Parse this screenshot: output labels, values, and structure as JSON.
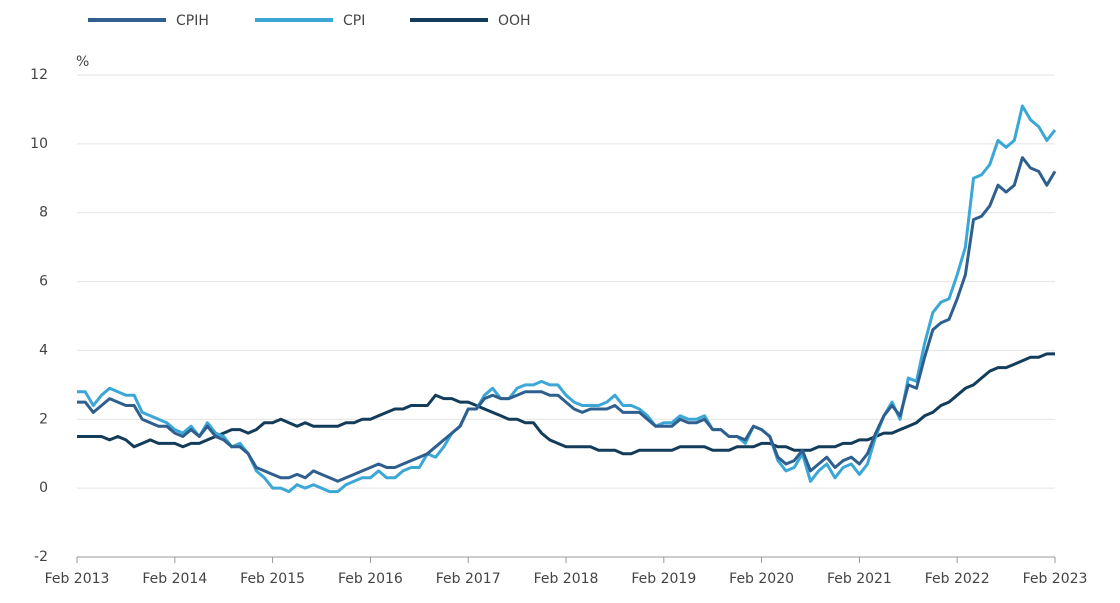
{
  "chart_data": {
    "type": "line",
    "y_unit": "%",
    "categories": [
      "Feb 2013",
      null,
      null,
      null,
      null,
      null,
      null,
      null,
      null,
      null,
      null,
      null,
      "Feb 2014",
      null,
      null,
      null,
      null,
      null,
      null,
      null,
      null,
      null,
      null,
      null,
      "Feb 2015",
      null,
      null,
      null,
      null,
      null,
      null,
      null,
      null,
      null,
      null,
      null,
      "Feb 2016",
      null,
      null,
      null,
      null,
      null,
      null,
      null,
      null,
      null,
      null,
      null,
      "Feb 2017",
      null,
      null,
      null,
      null,
      null,
      null,
      null,
      null,
      null,
      null,
      null,
      "Feb 2018",
      null,
      null,
      null,
      null,
      null,
      null,
      null,
      null,
      null,
      null,
      null,
      "Feb 2019",
      null,
      null,
      null,
      null,
      null,
      null,
      null,
      null,
      null,
      null,
      null,
      "Feb 2020",
      null,
      null,
      null,
      null,
      null,
      null,
      null,
      null,
      null,
      null,
      null,
      "Feb 2021",
      null,
      null,
      null,
      null,
      null,
      null,
      null,
      null,
      null,
      null,
      null,
      "Feb 2022",
      null,
      null,
      null,
      null,
      null,
      null,
      null,
      null,
      null,
      null,
      null,
      "Feb 2023"
    ],
    "series": [
      {
        "name": "CPIH",
        "color": "#2e5f8e",
        "values": [
          2.5,
          2.5,
          2.2,
          2.4,
          2.6,
          2.5,
          2.4,
          2.4,
          2.0,
          1.9,
          1.8,
          1.8,
          1.6,
          1.5,
          1.7,
          1.5,
          1.8,
          1.5,
          1.4,
          1.2,
          1.2,
          1.0,
          0.6,
          0.5,
          0.4,
          0.3,
          0.3,
          0.4,
          0.3,
          0.5,
          0.4,
          0.3,
          0.2,
          0.3,
          0.4,
          0.5,
          0.6,
          0.7,
          0.6,
          0.6,
          0.7,
          0.8,
          0.9,
          1.0,
          1.2,
          1.4,
          1.6,
          1.8,
          2.3,
          2.3,
          2.6,
          2.7,
          2.6,
          2.6,
          2.7,
          2.8,
          2.8,
          2.8,
          2.7,
          2.7,
          2.5,
          2.3,
          2.2,
          2.3,
          2.3,
          2.3,
          2.4,
          2.2,
          2.2,
          2.2,
          2.0,
          1.8,
          1.8,
          1.8,
          2.0,
          1.9,
          1.9,
          2.0,
          1.7,
          1.7,
          1.5,
          1.5,
          1.4,
          1.8,
          1.7,
          1.5,
          0.9,
          0.7,
          0.8,
          1.1,
          0.5,
          0.7,
          0.9,
          0.6,
          0.8,
          0.9,
          0.7,
          1.0,
          1.6,
          2.1,
          2.4,
          2.1,
          3.0,
          2.9,
          3.8,
          4.6,
          4.8,
          4.9,
          5.5,
          6.2,
          7.8,
          7.9,
          8.2,
          8.8,
          8.6,
          8.8,
          9.6,
          9.3,
          9.2,
          8.8,
          9.2
        ]
      },
      {
        "name": "CPI",
        "color": "#3ba7d6",
        "values": [
          2.8,
          2.8,
          2.4,
          2.7,
          2.9,
          2.8,
          2.7,
          2.7,
          2.2,
          2.1,
          2.0,
          1.9,
          1.7,
          1.6,
          1.8,
          1.5,
          1.9,
          1.6,
          1.5,
          1.2,
          1.3,
          1.0,
          0.5,
          0.3,
          0.0,
          0.0,
          -0.1,
          0.1,
          0.0,
          0.1,
          0.0,
          -0.1,
          -0.1,
          0.1,
          0.2,
          0.3,
          0.3,
          0.5,
          0.3,
          0.3,
          0.5,
          0.6,
          0.6,
          1.0,
          0.9,
          1.2,
          1.6,
          1.8,
          2.3,
          2.3,
          2.7,
          2.9,
          2.6,
          2.6,
          2.9,
          3.0,
          3.0,
          3.1,
          3.0,
          3.0,
          2.7,
          2.5,
          2.4,
          2.4,
          2.4,
          2.5,
          2.7,
          2.4,
          2.4,
          2.3,
          2.1,
          1.8,
          1.9,
          1.9,
          2.1,
          2.0,
          2.0,
          2.1,
          1.7,
          1.7,
          1.5,
          1.5,
          1.3,
          1.8,
          1.7,
          1.5,
          0.8,
          0.5,
          0.6,
          1.0,
          0.2,
          0.5,
          0.7,
          0.3,
          0.6,
          0.7,
          0.4,
          0.7,
          1.5,
          2.1,
          2.5,
          2.0,
          3.2,
          3.1,
          4.2,
          5.1,
          5.4,
          5.5,
          6.2,
          7.0,
          9.0,
          9.1,
          9.4,
          10.1,
          9.9,
          10.1,
          11.1,
          10.7,
          10.5,
          10.1,
          10.4
        ]
      },
      {
        "name": "OOH",
        "color": "#123c5a",
        "values": [
          1.5,
          1.5,
          1.5,
          1.5,
          1.4,
          1.5,
          1.4,
          1.2,
          1.3,
          1.4,
          1.3,
          1.3,
          1.3,
          1.2,
          1.3,
          1.3,
          1.4,
          1.5,
          1.6,
          1.7,
          1.7,
          1.6,
          1.7,
          1.9,
          1.9,
          2.0,
          1.9,
          1.8,
          1.9,
          1.8,
          1.8,
          1.8,
          1.8,
          1.9,
          1.9,
          2.0,
          2.0,
          2.1,
          2.2,
          2.3,
          2.3,
          2.4,
          2.4,
          2.4,
          2.7,
          2.6,
          2.6,
          2.5,
          2.5,
          2.4,
          2.3,
          2.2,
          2.1,
          2.0,
          2.0,
          1.9,
          1.9,
          1.6,
          1.4,
          1.3,
          1.2,
          1.2,
          1.2,
          1.2,
          1.1,
          1.1,
          1.1,
          1.0,
          1.0,
          1.1,
          1.1,
          1.1,
          1.1,
          1.1,
          1.2,
          1.2,
          1.2,
          1.2,
          1.1,
          1.1,
          1.1,
          1.2,
          1.2,
          1.2,
          1.3,
          1.3,
          1.2,
          1.2,
          1.1,
          1.1,
          1.1,
          1.2,
          1.2,
          1.2,
          1.3,
          1.3,
          1.4,
          1.4,
          1.5,
          1.6,
          1.6,
          1.7,
          1.8,
          1.9,
          2.1,
          2.2,
          2.4,
          2.5,
          2.7,
          2.9,
          3.0,
          3.2,
          3.4,
          3.5,
          3.5,
          3.6,
          3.7,
          3.8,
          3.8,
          3.9,
          3.9
        ]
      }
    ],
    "ylim": [
      -2,
      12
    ],
    "yticks": [
      -2,
      0,
      2,
      4,
      6,
      8,
      10,
      12
    ],
    "grid": true,
    "legend": "top"
  }
}
